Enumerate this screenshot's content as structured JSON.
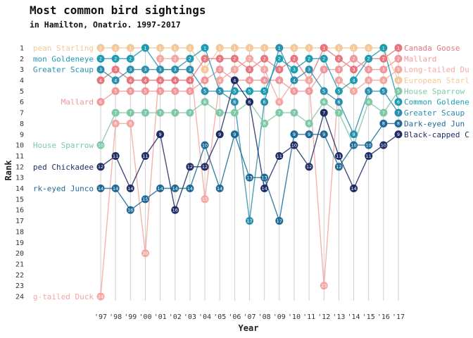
{
  "title": "Most common bird sightings",
  "subtitle": "in Hamilton, Onatrio. 1997-2017",
  "chart_data": {
    "type": "line",
    "title": "Most common bird sightings",
    "subtitle": "in Hamilton, Onatrio. 1997-2017",
    "xlabel": "Year",
    "ylabel": "Rank",
    "x": [
      "'97",
      "'98",
      "'99",
      "'00",
      "'01",
      "'02",
      "'03",
      "'04",
      "'05",
      "'06",
      "'07",
      "'08",
      "'09",
      "'10",
      "'11",
      "'12",
      "'13",
      "'14",
      "'15",
      "'16",
      "'17"
    ],
    "ylim": [
      1,
      24
    ],
    "y_reversed": true,
    "yticks": [
      "1",
      "2",
      "3",
      "4",
      "5",
      "6",
      "7",
      "8",
      "9",
      "10",
      "11",
      "12",
      "13",
      "14",
      "15",
      "16",
      "17",
      "18",
      "19",
      "20",
      "21",
      "22",
      "23",
      "24"
    ],
    "series": [
      {
        "name": "European Starling",
        "left_label": "pean Starling",
        "right_label": "European Starl",
        "color": "#f5c89a",
        "values": [
          1,
          1,
          1,
          1,
          1,
          1,
          1,
          3,
          1,
          1,
          1,
          1,
          1,
          1,
          1,
          1,
          1,
          1,
          1,
          1,
          4
        ]
      },
      {
        "name": "Canada Goose",
        "left_label": "",
        "right_label": "Canada Goose",
        "color": "#e8747c",
        "values": [
          4,
          3,
          4,
          4,
          4,
          4,
          4,
          2,
          2,
          2,
          3,
          2,
          3,
          2,
          4,
          1,
          2,
          3,
          2,
          2,
          1
        ]
      },
      {
        "name": "Mallard",
        "left_label": "Mallard",
        "right_label": "Mallard",
        "color": "#f0979a",
        "values": [
          6,
          5,
          5,
          5,
          5,
          5,
          5,
          4,
          3,
          4,
          4,
          4,
          4,
          5,
          5,
          3,
          3,
          2,
          3,
          3,
          2
        ]
      },
      {
        "name": "Long-tailed Duck",
        "left_label": "g-tailed Duck",
        "right_label": "Long-tailed Du",
        "color": "#f4a6a0",
        "values": [
          24,
          8,
          8,
          20,
          2,
          2,
          2,
          15,
          4,
          3,
          2,
          3,
          6,
          4,
          4,
          23,
          4,
          5,
          4,
          4,
          3
        ]
      },
      {
        "name": "Common Goldeneye",
        "left_label": "mon Goldeneye",
        "right_label": "Common Goldene",
        "color": "#1d9bb0",
        "values": [
          2,
          2,
          2,
          1,
          3,
          3,
          2,
          1,
          5,
          5,
          5,
          5,
          2,
          3,
          2,
          2,
          5,
          4,
          2,
          1,
          6
        ]
      },
      {
        "name": "Greater Scaup",
        "left_label": "Greater Scaup",
        "right_label": "Greater Scaup",
        "color": "#2a8fae",
        "values": [
          3,
          4,
          3,
          3,
          3,
          3,
          3,
          5,
          5,
          6,
          17,
          6,
          1,
          4,
          3,
          5,
          6,
          9,
          5,
          5,
          7
        ]
      },
      {
        "name": "House Sparrow",
        "left_label": "House Sparrow",
        "right_label": "House Sparrow",
        "color": "#7dc8a5",
        "values": [
          10,
          7,
          7,
          7,
          7,
          7,
          7,
          6,
          7,
          7,
          6,
          8,
          7,
          7,
          8,
          6,
          7,
          10,
          6,
          7,
          5
        ]
      },
      {
        "name": "Dark-eyed Junco",
        "left_label": "rk-eyed Junco",
        "right_label": "Dark-eyed Jun",
        "color": "#1e6a96",
        "values": [
          14,
          14,
          16,
          15,
          14,
          14,
          14,
          10,
          14,
          9,
          13,
          13,
          17,
          9,
          9,
          9,
          12,
          10,
          10,
          8,
          8
        ]
      },
      {
        "name": "Black-capped Chickadee",
        "left_label": "ped Chickadee",
        "right_label": "Black-capped C",
        "color": "#1f2d66",
        "values": [
          12,
          11,
          14,
          11,
          9,
          16,
          12,
          12,
          9,
          4,
          6,
          14,
          11,
          10,
          12,
          7,
          11,
          14,
          11,
          10,
          9
        ]
      }
    ]
  }
}
